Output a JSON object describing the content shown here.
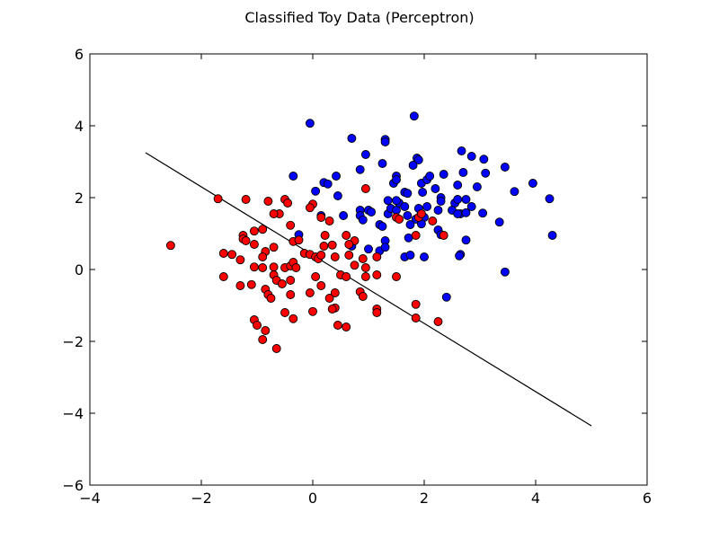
{
  "chart_data": {
    "type": "scatter",
    "title": "Classified Toy Data (Perceptron)",
    "xlabel": "",
    "ylabel": "",
    "xlim": [
      -4,
      6
    ],
    "ylim": [
      -6,
      6
    ],
    "xticks": [
      "−4",
      "−2",
      "0",
      "2",
      "4",
      "6"
    ],
    "yticks": [
      "−6",
      "−4",
      "−2",
      "0",
      "2",
      "4",
      "6"
    ],
    "grid": false,
    "legend": "none",
    "colors": {
      "class_pos": "#0000ff",
      "class_neg": "#ff0000",
      "boundary": "#000000"
    },
    "decision_boundary": {
      "x": [
        -3.0,
        5.0
      ],
      "y": [
        3.25,
        -4.35
      ]
    },
    "series": [
      {
        "color": "#0000ff",
        "points": [
          [
            -0.05,
            4.07
          ],
          [
            1.82,
            4.27
          ],
          [
            0.7,
            3.65
          ],
          [
            1.3,
            3.62
          ],
          [
            1.3,
            3.55
          ],
          [
            0.95,
            3.2
          ],
          [
            1.87,
            3.1
          ],
          [
            1.9,
            3.05
          ],
          [
            2.67,
            3.3
          ],
          [
            2.85,
            3.15
          ],
          [
            3.07,
            3.07
          ],
          [
            1.8,
            2.9
          ],
          [
            1.25,
            2.95
          ],
          [
            0.85,
            2.78
          ],
          [
            -0.35,
            2.6
          ],
          [
            0.2,
            2.42
          ],
          [
            0.27,
            2.38
          ],
          [
            0.42,
            2.6
          ],
          [
            0.05,
            2.18
          ],
          [
            0.45,
            2.05
          ],
          [
            1.5,
            2.6
          ],
          [
            1.45,
            2.4
          ],
          [
            1.5,
            2.5
          ],
          [
            1.65,
            2.15
          ],
          [
            1.7,
            2.12
          ],
          [
            1.97,
            2.15
          ],
          [
            1.95,
            2.4
          ],
          [
            2.05,
            2.5
          ],
          [
            2.1,
            2.6
          ],
          [
            2.35,
            2.65
          ],
          [
            2.2,
            2.25
          ],
          [
            2.3,
            2.0
          ],
          [
            2.55,
            1.85
          ],
          [
            2.6,
            2.35
          ],
          [
            2.7,
            2.7
          ],
          [
            2.95,
            2.3
          ],
          [
            3.1,
            2.68
          ],
          [
            3.45,
            2.85
          ],
          [
            3.62,
            2.17
          ],
          [
            3.95,
            2.4
          ],
          [
            4.25,
            1.97
          ],
          [
            3.05,
            1.57
          ],
          [
            3.35,
            1.32
          ],
          [
            4.3,
            0.95
          ],
          [
            3.45,
            -0.07
          ],
          [
            2.4,
            -0.77
          ],
          [
            0.15,
            1.5
          ],
          [
            0.55,
            1.5
          ],
          [
            0.85,
            1.65
          ],
          [
            1.0,
            1.65
          ],
          [
            1.05,
            1.6
          ],
          [
            0.85,
            1.5
          ],
          [
            0.9,
            1.38
          ],
          [
            1.2,
            1.25
          ],
          [
            1.35,
            1.55
          ],
          [
            1.4,
            1.7
          ],
          [
            1.35,
            1.92
          ],
          [
            1.5,
            1.65
          ],
          [
            1.55,
            1.85
          ],
          [
            1.65,
            1.75
          ],
          [
            1.7,
            1.5
          ],
          [
            1.85,
            1.4
          ],
          [
            1.9,
            1.7
          ],
          [
            1.95,
            1.55
          ],
          [
            2.0,
            1.45
          ],
          [
            2.05,
            1.75
          ],
          [
            2.25,
            1.65
          ],
          [
            2.3,
            1.9
          ],
          [
            2.5,
            1.65
          ],
          [
            2.6,
            1.95
          ],
          [
            2.65,
            1.55
          ],
          [
            2.75,
            1.58
          ],
          [
            2.75,
            1.95
          ],
          [
            2.85,
            1.75
          ],
          [
            2.6,
            1.55
          ],
          [
            1.95,
            1.27
          ],
          [
            1.75,
            1.25
          ],
          [
            1.72,
            0.88
          ],
          [
            1.25,
            1.2
          ],
          [
            1.3,
            0.8
          ],
          [
            2.25,
            1.1
          ],
          [
            2.3,
            0.97
          ],
          [
            2.75,
            0.82
          ],
          [
            -0.25,
            0.97
          ],
          [
            0.7,
            0.65
          ],
          [
            1.0,
            0.57
          ],
          [
            1.2,
            0.52
          ],
          [
            1.3,
            0.62
          ],
          [
            1.65,
            0.35
          ],
          [
            1.75,
            0.4
          ],
          [
            2.0,
            0.35
          ],
          [
            2.65,
            0.42
          ],
          [
            2.63,
            0.38
          ],
          [
            1.5,
            1.92
          ]
        ]
      },
      {
        "color": "#ff0000",
        "points": [
          [
            -2.55,
            0.67
          ],
          [
            -1.7,
            1.97
          ],
          [
            -1.2,
            1.95
          ],
          [
            -0.8,
            1.9
          ],
          [
            -0.5,
            1.95
          ],
          [
            -0.45,
            1.85
          ],
          [
            -0.6,
            1.55
          ],
          [
            -0.7,
            1.55
          ],
          [
            -0.4,
            1.23
          ],
          [
            0.0,
            1.82
          ],
          [
            -0.05,
            1.72
          ],
          [
            0.15,
            1.45
          ],
          [
            0.3,
            1.35
          ],
          [
            -0.9,
            1.12
          ],
          [
            -1.05,
            1.07
          ],
          [
            -1.25,
            0.95
          ],
          [
            -1.25,
            0.85
          ],
          [
            -1.2,
            0.8
          ],
          [
            -1.05,
            0.7
          ],
          [
            -0.85,
            0.5
          ],
          [
            -0.7,
            0.62
          ],
          [
            -0.35,
            0.78
          ],
          [
            -0.25,
            0.82
          ],
          [
            0.22,
            0.95
          ],
          [
            0.6,
            0.95
          ],
          [
            0.75,
            0.8
          ],
          [
            0.2,
            0.65
          ],
          [
            0.35,
            0.68
          ],
          [
            0.65,
            0.7
          ],
          [
            -1.6,
            0.45
          ],
          [
            -1.45,
            0.42
          ],
          [
            -1.3,
            0.27
          ],
          [
            -1.05,
            0.07
          ],
          [
            -0.9,
            0.35
          ],
          [
            -0.9,
            0.05
          ],
          [
            -0.7,
            0.07
          ],
          [
            -0.5,
            0.05
          ],
          [
            -0.4,
            0.1
          ],
          [
            -0.35,
            0.2
          ],
          [
            -0.3,
            0.05
          ],
          [
            -0.15,
            0.45
          ],
          [
            -0.05,
            0.42
          ],
          [
            0.05,
            0.35
          ],
          [
            0.1,
            0.3
          ],
          [
            0.15,
            0.4
          ],
          [
            0.4,
            0.35
          ],
          [
            0.65,
            0.4
          ],
          [
            0.75,
            0.12
          ],
          [
            0.9,
            0.3
          ],
          [
            0.95,
            0.05
          ],
          [
            1.15,
            0.35
          ],
          [
            -1.6,
            -0.2
          ],
          [
            -1.3,
            -0.45
          ],
          [
            -1.1,
            -0.42
          ],
          [
            -0.7,
            -0.15
          ],
          [
            -0.65,
            -0.3
          ],
          [
            -0.55,
            -0.4
          ],
          [
            -0.4,
            -0.3
          ],
          [
            -0.4,
            -0.7
          ],
          [
            -0.85,
            -0.55
          ],
          [
            -0.8,
            -0.7
          ],
          [
            -0.75,
            -0.8
          ],
          [
            -0.05,
            -0.65
          ],
          [
            0.05,
            -0.2
          ],
          [
            0.15,
            -0.45
          ],
          [
            0.3,
            -0.8
          ],
          [
            0.4,
            -0.65
          ],
          [
            0.5,
            -0.15
          ],
          [
            0.6,
            -0.2
          ],
          [
            0.95,
            -0.2
          ],
          [
            1.15,
            -0.15
          ],
          [
            1.5,
            -0.2
          ],
          [
            0.85,
            -0.62
          ],
          [
            0.9,
            -0.75
          ],
          [
            1.15,
            -1.1
          ],
          [
            1.15,
            -1.2
          ],
          [
            1.85,
            -0.97
          ],
          [
            -0.5,
            -1.2
          ],
          [
            -0.35,
            -1.37
          ],
          [
            0.0,
            -1.17
          ],
          [
            0.4,
            -1.07
          ],
          [
            0.35,
            -1.1
          ],
          [
            0.45,
            -1.55
          ],
          [
            0.6,
            -1.6
          ],
          [
            1.85,
            -1.35
          ],
          [
            2.25,
            -1.45
          ],
          [
            -1.05,
            -1.4
          ],
          [
            -1.0,
            -1.55
          ],
          [
            -0.85,
            -1.7
          ],
          [
            -0.9,
            -1.95
          ],
          [
            -0.65,
            -2.2
          ],
          [
            0.95,
            2.25
          ],
          [
            1.5,
            1.45
          ],
          [
            1.55,
            1.4
          ],
          [
            1.85,
            0.95
          ],
          [
            1.9,
            1.45
          ],
          [
            1.95,
            1.55
          ],
          [
            2.15,
            1.35
          ],
          [
            2.35,
            0.95
          ]
        ]
      }
    ]
  }
}
